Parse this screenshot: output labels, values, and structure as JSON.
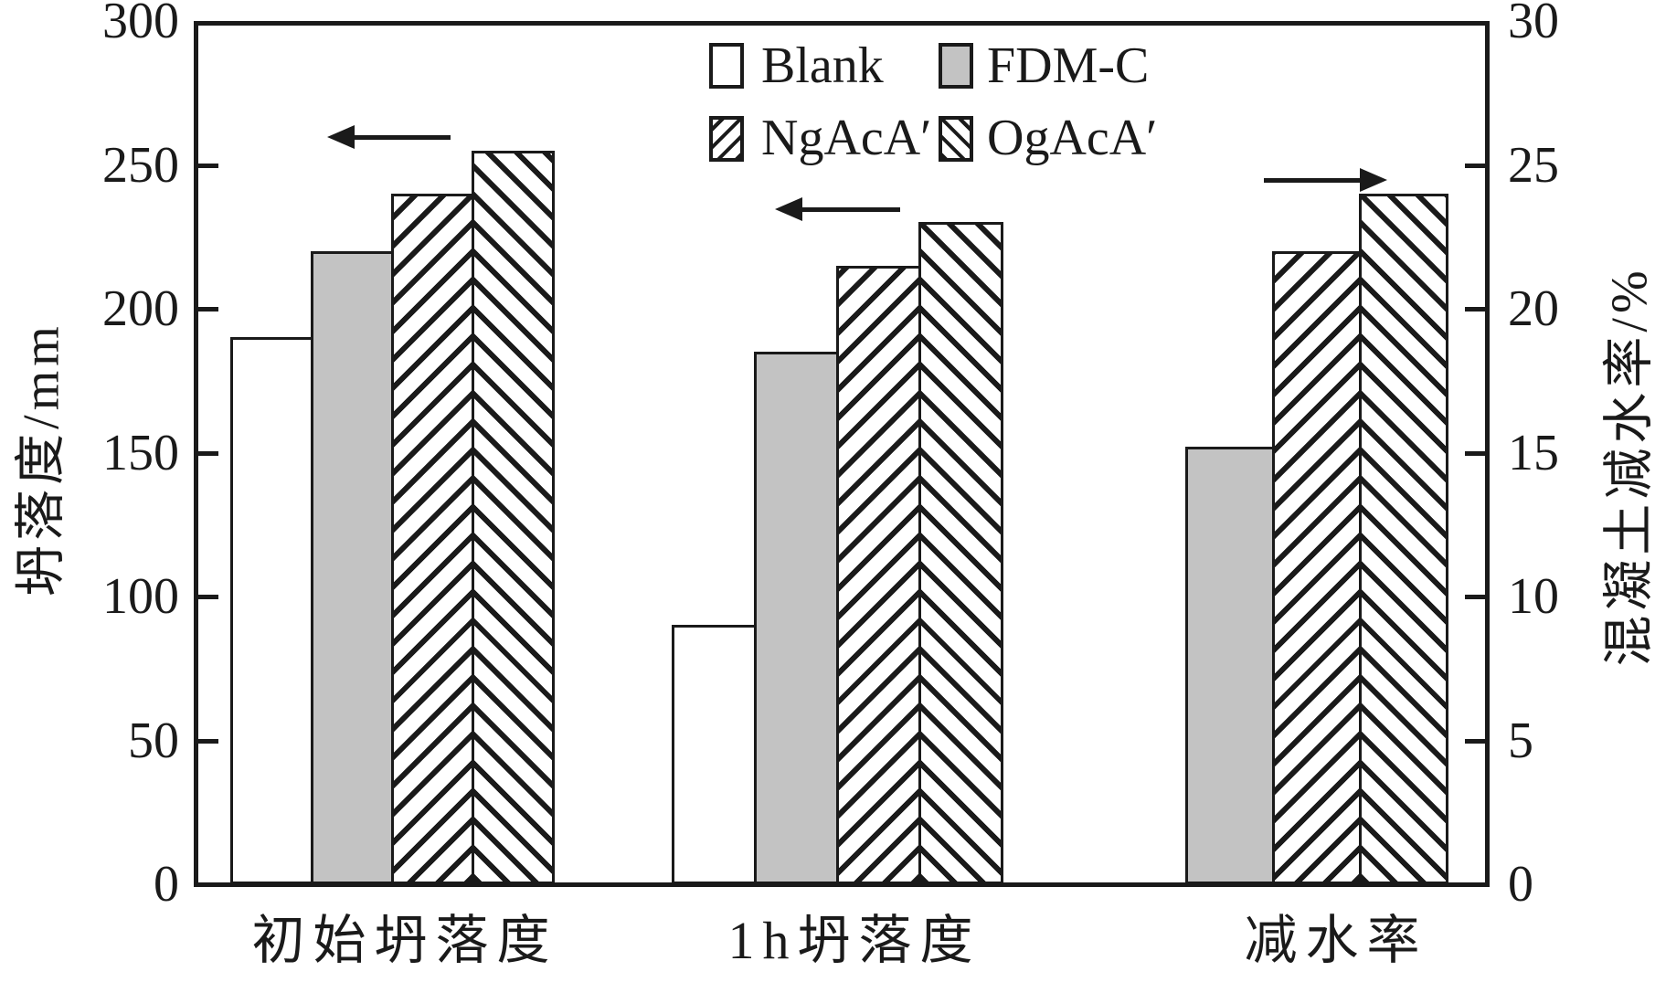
{
  "chart_data": {
    "type": "bar",
    "categories": [
      "初始坍落度",
      "1h坍落度",
      "减水率"
    ],
    "category_axis": [
      "left",
      "left",
      "right"
    ],
    "series": [
      {
        "name": "Blank",
        "fill": "white",
        "values": [
          190,
          90,
          null
        ]
      },
      {
        "name": "FDM-C",
        "fill": "gray",
        "values": [
          220,
          185,
          15.2
        ]
      },
      {
        "name": "NgAcA′",
        "fill": "hatch-forward",
        "values": [
          240,
          215,
          22
        ]
      },
      {
        "name": "OgAcA′",
        "fill": "hatch-back",
        "values": [
          255,
          230,
          24
        ]
      }
    ],
    "left_axis": {
      "label": "坍落度/mm",
      "min": 0,
      "max": 300,
      "step": 50,
      "ticks": [
        0,
        50,
        100,
        150,
        200,
        250,
        300
      ]
    },
    "right_axis": {
      "label": "混凝土减水率/%",
      "min": 0,
      "max": 30,
      "step": 5,
      "ticks": [
        0,
        5,
        10,
        15,
        20,
        25,
        30
      ]
    },
    "legend": {
      "position": "top-center",
      "entries": [
        "Blank",
        "FDM-C",
        "NgAcA′",
        "OgAcA′"
      ]
    },
    "grid": "off",
    "annotations": [
      {
        "type": "arrow",
        "direction": "left",
        "meaning": "group 初始坍落度 reads on left axis"
      },
      {
        "type": "arrow",
        "direction": "left",
        "meaning": "group 1h坍落度 reads on left axis"
      },
      {
        "type": "arrow",
        "direction": "right",
        "meaning": "group 减水率 reads on right axis"
      }
    ],
    "colors": {
      "ink": "#1a1a1a",
      "bar_gray": "#c3c3c3",
      "background": "#ffffff"
    },
    "patterns": {
      "NgAcA′": "diagonal hatch ///",
      "OgAcA′": "diagonal hatch \\\\\\"
    }
  }
}
